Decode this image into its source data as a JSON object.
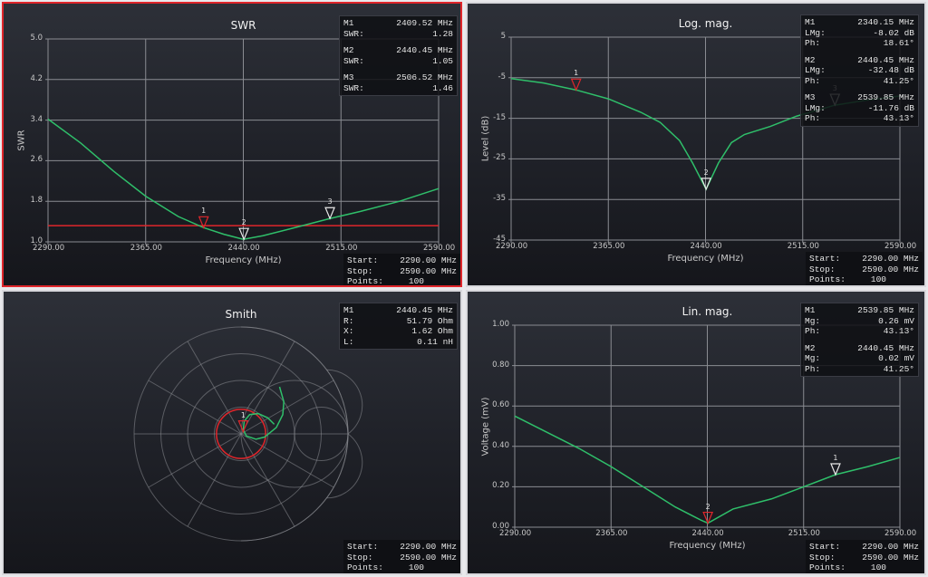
{
  "colors": {
    "trace": "#2fbf6a",
    "active_marker": "#e0262b",
    "marker": "#e8e8e8",
    "grid": "#8a8c92",
    "limit": "#e0262b",
    "panel_border_active": "#e0262b"
  },
  "panels": [
    {
      "markers": [
        {
          "id": "M1",
          "freq": "2409.52 MHz",
          "rows": [
            {
              "label": "SWR:",
              "value": "1.28"
            }
          ]
        },
        {
          "id": "M2",
          "freq": "2440.45 MHz",
          "rows": [
            {
              "label": "SWR:",
              "value": "1.05"
            }
          ]
        },
        {
          "id": "M3",
          "freq": "2506.52 MHz",
          "rows": [
            {
              "label": "SWR:",
              "value": "1.46"
            }
          ]
        }
      ],
      "sweep": {
        "start_label": "Start:",
        "start": "2290.00 MHz",
        "stop_label": "Stop:",
        "stop": "2590.00 MHz",
        "points_label": "Points:",
        "points": "100"
      }
    },
    {
      "markers": [
        {
          "id": "M1",
          "freq": "2340.15 MHz",
          "rows": [
            {
              "label": "LMg:",
              "value": "-8.02 dB"
            },
            {
              "label": "Ph:",
              "value": "18.61°"
            }
          ]
        },
        {
          "id": "M2",
          "freq": "2440.45 MHz",
          "rows": [
            {
              "label": "LMg:",
              "value": "-32.48 dB"
            },
            {
              "label": "Ph:",
              "value": "41.25°"
            }
          ]
        },
        {
          "id": "M3",
          "freq": "2539.85 MHz",
          "rows": [
            {
              "label": "LMg:",
              "value": "-11.76 dB"
            },
            {
              "label": "Ph:",
              "value": "43.13°"
            }
          ]
        }
      ],
      "sweep": {
        "start_label": "Start:",
        "start": "2290.00 MHz",
        "stop_label": "Stop:",
        "stop": "2590.00 MHz",
        "points_label": "Points:",
        "points": "100"
      }
    },
    {
      "markers": [
        {
          "id": "M1",
          "freq": "2440.45 MHz",
          "rows": [
            {
              "label": "R:",
              "value": "51.79 Ohm"
            },
            {
              "label": "X:",
              "value": "1.62 Ohm"
            },
            {
              "label": "L:",
              "value": "0.11 nH"
            }
          ]
        }
      ],
      "sweep": {
        "start_label": "Start:",
        "start": "2290.00 MHz",
        "stop_label": "Stop:",
        "stop": "2590.00 MHz",
        "points_label": "Points:",
        "points": "100"
      }
    },
    {
      "markers": [
        {
          "id": "M1",
          "freq": "2539.85 MHz",
          "rows": [
            {
              "label": "Mg:",
              "value": "0.26 mV"
            },
            {
              "label": "Ph:",
              "value": "43.13°"
            }
          ]
        },
        {
          "id": "M2",
          "freq": "2440.45 MHz",
          "rows": [
            {
              "label": "Mg:",
              "value": "0.02 mV"
            },
            {
              "label": "Ph:",
              "value": "41.25°"
            }
          ]
        }
      ],
      "sweep": {
        "start_label": "Start:",
        "start": "2290.00 MHz",
        "stop_label": "Stop:",
        "stop": "2590.00 MHz",
        "points_label": "Points:",
        "points": "100"
      }
    }
  ],
  "chart_data": [
    {
      "type": "line",
      "title": "SWR",
      "xlabel": "Frequency (MHz)",
      "ylabel": "SWR",
      "xlim": [
        2290,
        2590
      ],
      "ylim": [
        1.0,
        5.0
      ],
      "xticks": [
        "2290.00",
        "2365.00",
        "2440.00",
        "2515.00",
        "2590.00"
      ],
      "yticks": [
        "1.0",
        "1.8",
        "2.6",
        "3.4",
        "4.2",
        "5.0"
      ],
      "grid": true,
      "x": [
        2290,
        2315,
        2340,
        2365,
        2390,
        2409.52,
        2425,
        2440,
        2455,
        2475,
        2506.52,
        2530,
        2560,
        2590
      ],
      "values": [
        3.42,
        2.95,
        2.4,
        1.9,
        1.5,
        1.28,
        1.15,
        1.05,
        1.12,
        1.25,
        1.46,
        1.6,
        1.8,
        2.05
      ],
      "limit_line": 1.32,
      "markers": [
        {
          "n": "1",
          "x": 2409.52,
          "y": 1.28,
          "active": true
        },
        {
          "n": "2",
          "x": 2440.45,
          "y": 1.05,
          "active": false
        },
        {
          "n": "3",
          "x": 2506.52,
          "y": 1.46,
          "active": false
        }
      ]
    },
    {
      "type": "line",
      "title": "Log. mag.",
      "xlabel": "Frequency (MHz)",
      "ylabel": "Level (dB)",
      "xlim": [
        2290,
        2590
      ],
      "ylim": [
        -45,
        5
      ],
      "xticks": [
        "2290.00",
        "2365.00",
        "2440.00",
        "2515.00",
        "2590.00"
      ],
      "yticks": [
        "-45",
        "-35",
        "-25",
        "-15",
        "-5",
        "5"
      ],
      "grid": true,
      "x": [
        2290,
        2315,
        2340.15,
        2365,
        2390,
        2405,
        2420,
        2430,
        2440.45,
        2450,
        2460,
        2470,
        2490,
        2510,
        2539.85,
        2565,
        2590
      ],
      "values": [
        -5.2,
        -6.3,
        -8.02,
        -10.2,
        -13.5,
        -16,
        -20.5,
        -26,
        -32.48,
        -26,
        -21,
        -19,
        -17,
        -14.5,
        -11.76,
        -10.5,
        -9.5
      ],
      "markers": [
        {
          "n": "1",
          "x": 2340.15,
          "y": -8.02,
          "active": true
        },
        {
          "n": "2",
          "x": 2440.45,
          "y": -32.48,
          "active": false
        },
        {
          "n": "3",
          "x": 2539.85,
          "y": -11.76,
          "active": false
        }
      ]
    },
    {
      "type": "smith",
      "title": "Smith",
      "gamma_re": [
        0.36,
        0.4,
        0.39,
        0.33,
        0.22,
        0.14,
        0.05,
        0.02,
        0.03,
        0.08,
        0.16,
        0.25,
        0.31
      ],
      "gamma_im": [
        0.44,
        0.3,
        0.18,
        0.06,
        -0.03,
        -0.05,
        -0.02,
        0.04,
        0.12,
        0.18,
        0.19,
        0.15,
        0.09
      ],
      "vswr_circle_gamma": 0.23,
      "markers": [
        {
          "n": "1",
          "re": 0.02,
          "im": 0.02,
          "active": true
        }
      ]
    },
    {
      "type": "line",
      "title": "Lin. mag.",
      "xlabel": "Frequency (MHz)",
      "ylabel": "Voltage (mV)",
      "xlim": [
        2290,
        2590
      ],
      "ylim": [
        0,
        1.0
      ],
      "xticks": [
        "2290.00",
        "2365.00",
        "2440.00",
        "2515.00",
        "2590.00"
      ],
      "yticks": [
        "0.00",
        "0.20",
        "0.40",
        "0.60",
        "0.80",
        "1.00"
      ],
      "grid": true,
      "x": [
        2290,
        2315,
        2340,
        2365,
        2390,
        2415,
        2435,
        2440.45,
        2460,
        2490,
        2515,
        2539.85,
        2565,
        2590
      ],
      "values": [
        0.55,
        0.47,
        0.39,
        0.3,
        0.2,
        0.1,
        0.035,
        0.02,
        0.09,
        0.14,
        0.2,
        0.26,
        0.3,
        0.345
      ],
      "markers": [
        {
          "n": "1",
          "x": 2539.85,
          "y": 0.26,
          "active": false
        },
        {
          "n": "2",
          "x": 2440.45,
          "y": 0.02,
          "active": true
        }
      ]
    }
  ]
}
